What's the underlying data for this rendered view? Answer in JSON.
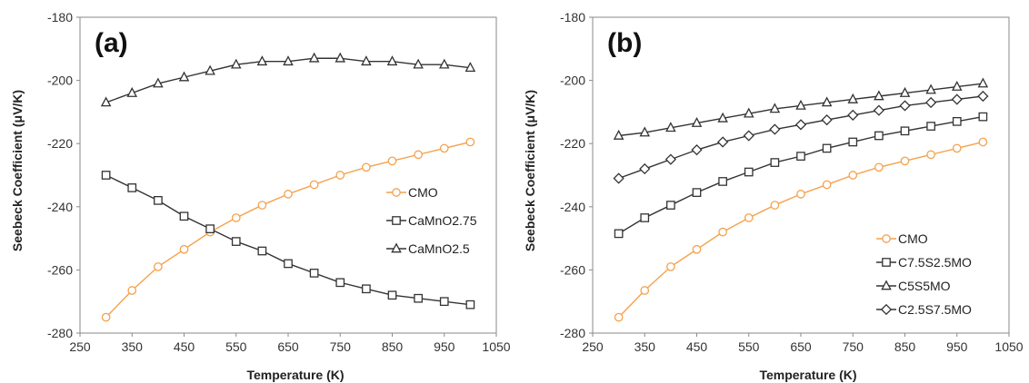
{
  "chart_data": [
    {
      "type": "line",
      "panel_label": "(a)",
      "xlabel": "Temperature (K)",
      "ylabel": "Seebeck Coefficient  (μV/K)",
      "xlim": [
        250,
        1050
      ],
      "ylim": [
        -280,
        -180
      ],
      "xticks": [
        "250",
        "350",
        "450",
        "550",
        "650",
        "750",
        "850",
        "950",
        "1050"
      ],
      "yticks": [
        "-180",
        "-200",
        "-220",
        "-240",
        "-260",
        "-280"
      ],
      "grid": false,
      "legend_position": "center-right",
      "x": [
        300,
        350,
        400,
        450,
        500,
        550,
        600,
        650,
        700,
        750,
        800,
        850,
        900,
        950,
        1000
      ],
      "series": [
        {
          "name": "CMO",
          "marker": "circle",
          "color": "#F5A14C",
          "values": [
            -275,
            -266.5,
            -259,
            -253.5,
            -248,
            -243.5,
            -239.5,
            -236,
            -233,
            -230,
            -227.5,
            -225.5,
            -223.5,
            -221.5,
            -219.5
          ]
        },
        {
          "name": "CaMnO2.75",
          "marker": "square",
          "color": "#333333",
          "values": [
            -230,
            -234,
            -238,
            -243,
            -247,
            -251,
            -254,
            -258,
            -261,
            -264,
            -266,
            -268,
            -269,
            -270,
            -271
          ]
        },
        {
          "name": "CaMnO2.5",
          "marker": "triangle",
          "color": "#333333",
          "values": [
            -207,
            -204,
            -201,
            -199,
            -197,
            -195,
            -194,
            -194,
            -193,
            -193,
            -194,
            -194,
            -195,
            -195,
            -196
          ]
        }
      ]
    },
    {
      "type": "line",
      "panel_label": "(b)",
      "xlabel": "Temperature (K)",
      "ylabel": "Seebeck Coefficient  (μV/K)",
      "xlim": [
        250,
        1050
      ],
      "ylim": [
        -280,
        -180
      ],
      "xticks": [
        "250",
        "350",
        "450",
        "550",
        "650",
        "750",
        "850",
        "950",
        "1050"
      ],
      "yticks": [
        "-180",
        "-200",
        "-220",
        "-240",
        "-260",
        "-280"
      ],
      "grid": false,
      "legend_position": "bottom-right",
      "x": [
        300,
        350,
        400,
        450,
        500,
        550,
        600,
        650,
        700,
        750,
        800,
        850,
        900,
        950,
        1000
      ],
      "series": [
        {
          "name": "CMO",
          "marker": "circle",
          "color": "#F5A14C",
          "values": [
            -275,
            -266.5,
            -259,
            -253.5,
            -248,
            -243.5,
            -239.5,
            -236,
            -233,
            -230,
            -227.5,
            -225.5,
            -223.5,
            -221.5,
            -219.5
          ]
        },
        {
          "name": "C7.5S2.5MO",
          "marker": "square",
          "color": "#333333",
          "values": [
            -248.5,
            -243.5,
            -239.5,
            -235.5,
            -232,
            -229,
            -226,
            -224,
            -221.5,
            -219.5,
            -217.5,
            -216,
            -214.5,
            -213,
            -211.5
          ]
        },
        {
          "name": "C5S5MO",
          "marker": "triangle",
          "color": "#333333",
          "values": [
            -217.5,
            -216.5,
            -215,
            -213.5,
            -212,
            -210.5,
            -209,
            -208,
            -207,
            -206,
            -205,
            -204,
            -203,
            -202,
            -201
          ]
        },
        {
          "name": "C2.5S7.5MO",
          "marker": "diamond",
          "color": "#333333",
          "values": [
            -231,
            -228,
            -225,
            -222,
            -219.5,
            -217.5,
            -215.5,
            -214,
            -212.5,
            -211,
            -209.5,
            -208,
            -207,
            -206,
            -205
          ]
        }
      ]
    }
  ]
}
